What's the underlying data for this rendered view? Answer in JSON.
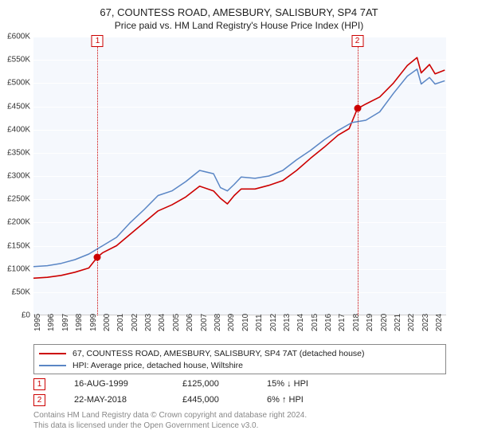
{
  "header": {
    "title1": "67, COUNTESS ROAD, AMESBURY, SALISBURY, SP4 7AT",
    "title2": "Price paid vs. HM Land Registry's House Price Index (HPI)"
  },
  "chart": {
    "type": "line",
    "background_color": "#f5f8fd",
    "grid_color": "#ffffff",
    "axis_text_color": "#333333",
    "x": {
      "start": 1995,
      "end": 2024.8,
      "tick_start": 1995,
      "tick_end": 2024,
      "tick_step": 1,
      "tick_fontsize": 10
    },
    "y": {
      "min": 0,
      "max": 600000,
      "tick_step": 50000,
      "label_prefix": "£",
      "tick_labels": [
        "£0",
        "£50K",
        "£100K",
        "£150K",
        "£200K",
        "£250K",
        "£300K",
        "£350K",
        "£400K",
        "£450K",
        "£500K",
        "£550K",
        "£600K"
      ],
      "tick_fontsize": 10
    },
    "series": [
      {
        "name": "property",
        "label": "67, COUNTESS ROAD, AMESBURY, SALISBURY, SP4 7AT (detached house)",
        "color": "#cc0000",
        "line_width": 1.6,
        "data": [
          [
            1995,
            80000
          ],
          [
            1996,
            82000
          ],
          [
            1997,
            86000
          ],
          [
            1998,
            93000
          ],
          [
            1999,
            102000
          ],
          [
            1999.6,
            125000
          ],
          [
            2000,
            135000
          ],
          [
            2001,
            150000
          ],
          [
            2002,
            175000
          ],
          [
            2003,
            200000
          ],
          [
            2004,
            225000
          ],
          [
            2005,
            238000
          ],
          [
            2006,
            255000
          ],
          [
            2007,
            278000
          ],
          [
            2008,
            268000
          ],
          [
            2008.5,
            252000
          ],
          [
            2009,
            240000
          ],
          [
            2009.5,
            258000
          ],
          [
            2010,
            272000
          ],
          [
            2011,
            272000
          ],
          [
            2012,
            280000
          ],
          [
            2013,
            290000
          ],
          [
            2014,
            312000
          ],
          [
            2015,
            338000
          ],
          [
            2016,
            362000
          ],
          [
            2017,
            388000
          ],
          [
            2017.8,
            402000
          ],
          [
            2018.39,
            445000
          ],
          [
            2019,
            455000
          ],
          [
            2020,
            470000
          ],
          [
            2021,
            500000
          ],
          [
            2022,
            538000
          ],
          [
            2022.7,
            555000
          ],
          [
            2023,
            522000
          ],
          [
            2023.6,
            540000
          ],
          [
            2024,
            520000
          ],
          [
            2024.7,
            528000
          ]
        ]
      },
      {
        "name": "hpi",
        "label": "HPI: Average price, detached house, Wiltshire",
        "color": "#5a86c5",
        "line_width": 1.5,
        "data": [
          [
            1995,
            105000
          ],
          [
            1996,
            107000
          ],
          [
            1997,
            112000
          ],
          [
            1998,
            120000
          ],
          [
            1999,
            132000
          ],
          [
            2000,
            150000
          ],
          [
            2001,
            168000
          ],
          [
            2002,
            200000
          ],
          [
            2003,
            228000
          ],
          [
            2004,
            258000
          ],
          [
            2005,
            268000
          ],
          [
            2006,
            288000
          ],
          [
            2007,
            312000
          ],
          [
            2008,
            305000
          ],
          [
            2008.5,
            275000
          ],
          [
            2009,
            268000
          ],
          [
            2009.5,
            282000
          ],
          [
            2010,
            298000
          ],
          [
            2011,
            295000
          ],
          [
            2012,
            300000
          ],
          [
            2013,
            312000
          ],
          [
            2014,
            335000
          ],
          [
            2015,
            355000
          ],
          [
            2016,
            378000
          ],
          [
            2017,
            398000
          ],
          [
            2018,
            415000
          ],
          [
            2019,
            420000
          ],
          [
            2020,
            438000
          ],
          [
            2021,
            478000
          ],
          [
            2022,
            515000
          ],
          [
            2022.7,
            530000
          ],
          [
            2023,
            498000
          ],
          [
            2023.6,
            512000
          ],
          [
            2024,
            498000
          ],
          [
            2024.7,
            505000
          ]
        ]
      }
    ],
    "markers": [
      {
        "id": "1",
        "x": 1999.63,
        "price": 125000,
        "line_color": "#cc0000",
        "point_color": "#cc0000"
      },
      {
        "id": "2",
        "x": 2018.39,
        "price": 445000,
        "line_color": "#cc0000",
        "point_color": "#cc0000"
      }
    ]
  },
  "legend": {
    "border_color": "#888888",
    "fontsize": 10.5
  },
  "transactions": [
    {
      "badge": "1",
      "date": "16-AUG-1999",
      "price": "£125,000",
      "hpi": "15% ↓ HPI"
    },
    {
      "badge": "2",
      "date": "22-MAY-2018",
      "price": "£445,000",
      "hpi": "6% ↑ HPI"
    }
  ],
  "footer": {
    "line1": "Contains HM Land Registry data © Crown copyright and database right 2024.",
    "line2": "This data is licensed under the Open Government Licence v3.0."
  }
}
